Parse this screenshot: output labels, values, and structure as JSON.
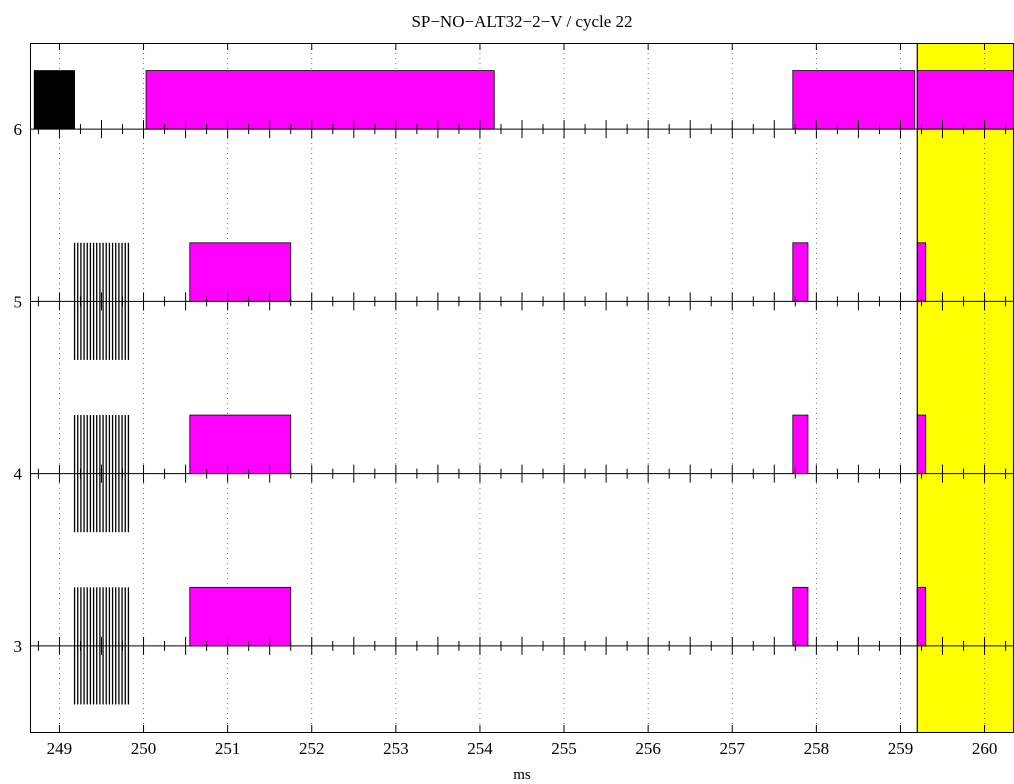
{
  "chart_data": {
    "type": "timeline",
    "title": "SP−NO−ALT32−2−V / cycle 22",
    "xlabel": "ms",
    "ylabel": "",
    "xlim": [
      248.65,
      260.35
    ],
    "ylim": [
      2.5,
      6.5
    ],
    "x_ticks": [
      249,
      250,
      251,
      252,
      253,
      254,
      255,
      256,
      257,
      258,
      259,
      260
    ],
    "y_ticks": [
      3,
      4,
      5,
      6
    ],
    "grid": "vertical dotted",
    "highlight_region": {
      "start": 259.2,
      "end": 260.35,
      "color": "#ffff00"
    },
    "marker_line": 259.2,
    "lanes": [
      {
        "id": 6,
        "bars": [
          {
            "start": 248.7,
            "end": 249.18,
            "color": "#000000"
          },
          {
            "start": 250.03,
            "end": 254.17,
            "color": "#ff00ff"
          },
          {
            "start": 257.72,
            "end": 259.17,
            "color": "#ff00ff"
          },
          {
            "start": 259.2,
            "end": 260.35,
            "color": "#ff00ff"
          }
        ],
        "pulse_burst": null
      },
      {
        "id": 5,
        "bars": [
          {
            "start": 250.55,
            "end": 251.75,
            "color": "#ff00ff"
          },
          {
            "start": 257.72,
            "end": 257.9,
            "color": "#ff00ff"
          },
          {
            "start": 259.2,
            "end": 259.3,
            "color": "#ff00ff"
          }
        ],
        "pulse_burst": {
          "start": 249.18,
          "end": 249.82,
          "count": 18
        }
      },
      {
        "id": 4,
        "bars": [
          {
            "start": 250.55,
            "end": 251.75,
            "color": "#ff00ff"
          },
          {
            "start": 257.72,
            "end": 257.9,
            "color": "#ff00ff"
          },
          {
            "start": 259.2,
            "end": 259.3,
            "color": "#ff00ff"
          }
        ],
        "pulse_burst": {
          "start": 249.18,
          "end": 249.82,
          "count": 18
        }
      },
      {
        "id": 3,
        "bars": [
          {
            "start": 250.55,
            "end": 251.75,
            "color": "#ff00ff"
          },
          {
            "start": 257.72,
            "end": 257.9,
            "color": "#ff00ff"
          },
          {
            "start": 259.2,
            "end": 259.3,
            "color": "#ff00ff"
          }
        ],
        "pulse_burst": {
          "start": 249.18,
          "end": 249.82,
          "count": 18
        }
      }
    ]
  }
}
